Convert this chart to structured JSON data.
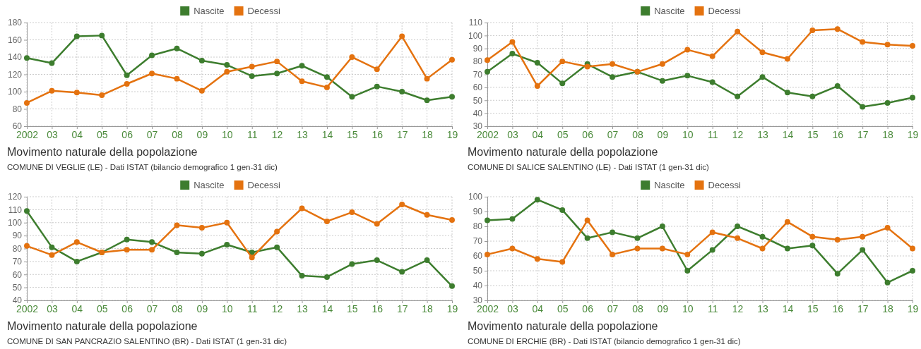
{
  "chart_data": [
    {
      "type": "line",
      "title": "Movimento naturale della popolazione",
      "subtitle": "COMUNE DI VEGLIE (LE) - Dati ISTAT (bilancio demografico 1 gen-31 dic)",
      "categories": [
        "2002",
        "03",
        "04",
        "05",
        "06",
        "07",
        "08",
        "09",
        "10",
        "11",
        "12",
        "13",
        "14",
        "15",
        "16",
        "17",
        "18",
        "19"
      ],
      "series": [
        {
          "name": "Nascite",
          "color": "#3d7d2e",
          "values": [
            139,
            133,
            164,
            165,
            119,
            142,
            150,
            136,
            131,
            118,
            121,
            130,
            117,
            94,
            106,
            100,
            90,
            94
          ]
        },
        {
          "name": "Decessi",
          "color": "#e4720f",
          "values": [
            87,
            101,
            99,
            96,
            109,
            121,
            115,
            101,
            123,
            129,
            135,
            112,
            105,
            140,
            126,
            164,
            115,
            137
          ]
        }
      ],
      "ylim": [
        60,
        180
      ],
      "yticks": [
        60,
        80,
        100,
        120,
        140,
        160,
        180
      ],
      "grid": true,
      "legend": "top",
      "marker": "circle"
    },
    {
      "type": "line",
      "title": "Movimento naturale della popolazione",
      "subtitle": "COMUNE DI SALICE SALENTINO (LE) - Dati ISTAT (1 gen-31 dic)",
      "categories": [
        "2002",
        "03",
        "04",
        "05",
        "06",
        "07",
        "08",
        "09",
        "10",
        "11",
        "12",
        "13",
        "14",
        "15",
        "16",
        "17",
        "18",
        "19"
      ],
      "series": [
        {
          "name": "Nascite",
          "color": "#3d7d2e",
          "values": [
            72,
            86,
            79,
            63,
            78,
            68,
            72,
            65,
            69,
            64,
            53,
            68,
            56,
            53,
            61,
            45,
            48,
            52
          ]
        },
        {
          "name": "Decessi",
          "color": "#e4720f",
          "values": [
            81,
            95,
            61,
            80,
            76,
            78,
            72,
            78,
            89,
            84,
            103,
            87,
            82,
            104,
            105,
            95,
            93,
            92
          ]
        }
      ],
      "ylim": [
        30,
        110
      ],
      "yticks": [
        30,
        40,
        50,
        60,
        70,
        80,
        90,
        100,
        110
      ],
      "grid": true,
      "legend": "top",
      "marker": "circle"
    },
    {
      "type": "line",
      "title": "Movimento naturale della popolazione",
      "subtitle": "COMUNE DI SAN PANCRAZIO SALENTINO (BR) - Dati ISTAT (1 gen-31 dic)",
      "categories": [
        "2002",
        "03",
        "04",
        "05",
        "06",
        "07",
        "08",
        "09",
        "10",
        "11",
        "12",
        "13",
        "14",
        "15",
        "16",
        "17",
        "18",
        "19"
      ],
      "series": [
        {
          "name": "Nascite",
          "color": "#3d7d2e",
          "values": [
            109,
            81,
            70,
            77,
            87,
            85,
            77,
            76,
            83,
            77,
            81,
            59,
            58,
            68,
            71,
            62,
            71,
            51
          ]
        },
        {
          "name": "Decessi",
          "color": "#e4720f",
          "values": [
            82,
            75,
            85,
            77,
            79,
            79,
            98,
            96,
            100,
            73,
            93,
            111,
            101,
            108,
            99,
            114,
            106,
            102
          ]
        }
      ],
      "ylim": [
        40,
        120
      ],
      "yticks": [
        40,
        50,
        60,
        70,
        80,
        90,
        100,
        110,
        120
      ],
      "grid": true,
      "legend": "top",
      "marker": "circle"
    },
    {
      "type": "line",
      "title": "Movimento naturale della popolazione",
      "subtitle": "COMUNE DI ERCHIE (BR) - Dati ISTAT (bilancio demografico 1 gen-31 dic)",
      "categories": [
        "2002",
        "03",
        "04",
        "05",
        "06",
        "07",
        "08",
        "09",
        "10",
        "11",
        "12",
        "13",
        "14",
        "15",
        "16",
        "17",
        "18",
        "19"
      ],
      "series": [
        {
          "name": "Nascite",
          "color": "#3d7d2e",
          "values": [
            84,
            85,
            98,
            91,
            72,
            76,
            72,
            80,
            50,
            64,
            80,
            73,
            65,
            67,
            48,
            64,
            42,
            50
          ]
        },
        {
          "name": "Decessi",
          "color": "#e4720f",
          "values": [
            61,
            65,
            58,
            56,
            84,
            61,
            65,
            65,
            61,
            76,
            72,
            65,
            83,
            73,
            71,
            73,
            79,
            65
          ]
        }
      ],
      "ylim": [
        30,
        100
      ],
      "yticks": [
        30,
        40,
        50,
        60,
        70,
        80,
        90,
        100
      ],
      "grid": true,
      "legend": "top",
      "marker": "circle"
    }
  ]
}
